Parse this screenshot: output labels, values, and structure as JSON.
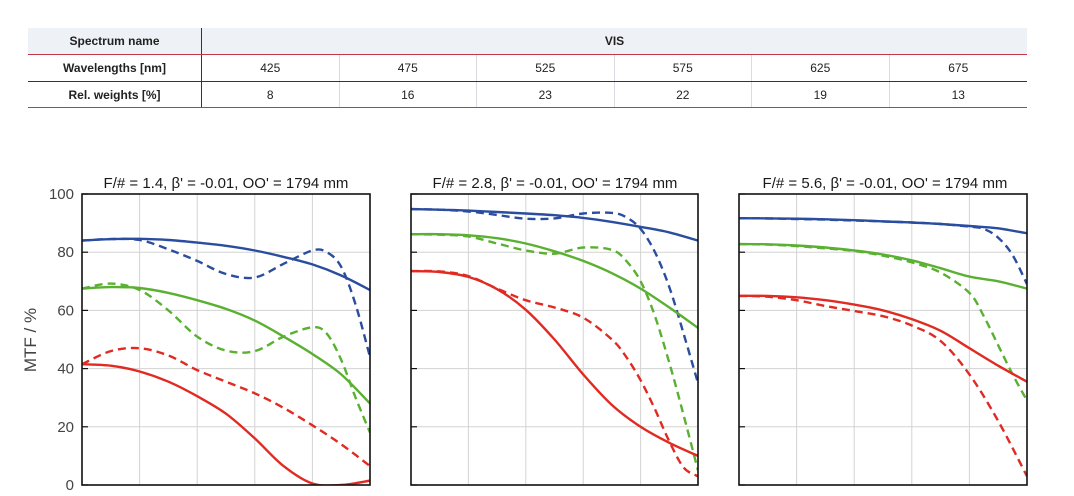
{
  "table": {
    "spectrum_header": "Spectrum name",
    "spectrum_value": "VIS",
    "wavelength_header": "Wavelengths [nm]",
    "wavelengths": [
      "425",
      "475",
      "525",
      "575",
      "625",
      "675"
    ],
    "weights_header": "Rel. weights [%]",
    "weights": [
      "8",
      "16",
      "23",
      "22",
      "19",
      "13"
    ]
  },
  "chart_data": [
    {
      "type": "line",
      "title": "F/# = 1.4, β' = -0.01, OO' = 1794 mm",
      "ylabel": "MTF / %",
      "ylim": [
        0,
        100
      ],
      "yticks": [
        0,
        20,
        40,
        60,
        80,
        100
      ],
      "xlim": [
        0,
        1
      ],
      "grid": true,
      "series": [
        {
          "color": "#2a4d9f",
          "dash": false,
          "x": [
            0,
            0.1,
            0.2,
            0.3,
            0.4,
            0.5,
            0.6,
            0.7,
            0.8,
            0.9,
            1.0
          ],
          "y": [
            84,
            84.5,
            84.6,
            84.2,
            83.3,
            82.2,
            80.6,
            78.4,
            75.8,
            72.0,
            67.0
          ]
        },
        {
          "color": "#2a4d9f",
          "dash": true,
          "x": [
            0,
            0.1,
            0.2,
            0.3,
            0.4,
            0.5,
            0.6,
            0.7,
            0.8,
            0.85,
            0.9,
            0.95,
            1.0
          ],
          "y": [
            84,
            84.5,
            84.2,
            81,
            77,
            72.5,
            71.3,
            76,
            80.6,
            80,
            75,
            62,
            44
          ]
        },
        {
          "color": "#5ab031",
          "dash": false,
          "x": [
            0,
            0.1,
            0.2,
            0.3,
            0.4,
            0.5,
            0.6,
            0.7,
            0.8,
            0.9,
            1.0
          ],
          "y": [
            67.5,
            68,
            67.7,
            66,
            63.5,
            60.5,
            56.5,
            51,
            45,
            38,
            28
          ]
        },
        {
          "color": "#5ab031",
          "dash": true,
          "x": [
            0,
            0.1,
            0.2,
            0.3,
            0.4,
            0.5,
            0.6,
            0.7,
            0.8,
            0.85,
            0.9,
            0.95,
            1.0
          ],
          "y": [
            67.5,
            69.2,
            67,
            60,
            51,
            46.2,
            46,
            51,
            54.2,
            52,
            43,
            30,
            18
          ]
        },
        {
          "color": "#e02a22",
          "dash": false,
          "x": [
            0,
            0.1,
            0.2,
            0.3,
            0.4,
            0.5,
            0.6,
            0.7,
            0.8,
            0.9,
            1.0
          ],
          "y": [
            41.5,
            41,
            39,
            35.5,
            30.5,
            24.5,
            16,
            6.5,
            0.5,
            0,
            1.5
          ]
        },
        {
          "color": "#e02a22",
          "dash": true,
          "x": [
            0,
            0.1,
            0.2,
            0.3,
            0.4,
            0.5,
            0.6,
            0.7,
            0.8,
            0.9,
            1.0
          ],
          "y": [
            41.5,
            46,
            47,
            44.5,
            39.5,
            35.5,
            31.5,
            26.5,
            20.5,
            14,
            6.5
          ]
        }
      ]
    },
    {
      "type": "line",
      "title": "F/# = 2.8, β' = -0.01, OO' = 1794 mm",
      "ylim": [
        0,
        100
      ],
      "yticks": [
        0,
        20,
        40,
        60,
        80,
        100
      ],
      "xlim": [
        0,
        1
      ],
      "grid": true,
      "series": [
        {
          "color": "#2a4d9f",
          "dash": false,
          "x": [
            0,
            0.1,
            0.2,
            0.3,
            0.4,
            0.5,
            0.6,
            0.7,
            0.8,
            0.9,
            1.0
          ],
          "y": [
            94.8,
            94.6,
            94.3,
            93.8,
            93.3,
            92.7,
            91.8,
            90.4,
            88.7,
            86.8,
            84.0
          ]
        },
        {
          "color": "#2a4d9f",
          "dash": true,
          "x": [
            0,
            0.1,
            0.2,
            0.3,
            0.4,
            0.5,
            0.6,
            0.7,
            0.75,
            0.8,
            0.85,
            0.9,
            0.95,
            1.0
          ],
          "y": [
            94.8,
            94.6,
            94,
            92.8,
            91.5,
            91.6,
            93.3,
            93.5,
            92,
            88,
            80,
            68,
            52,
            35
          ]
        },
        {
          "color": "#5ab031",
          "dash": false,
          "x": [
            0,
            0.1,
            0.2,
            0.3,
            0.4,
            0.5,
            0.6,
            0.7,
            0.8,
            0.9,
            1.0
          ],
          "y": [
            86.2,
            86.2,
            85.8,
            84.8,
            83.0,
            80.3,
            77.0,
            72.8,
            67.5,
            61.0,
            54.0
          ]
        },
        {
          "color": "#5ab031",
          "dash": true,
          "x": [
            0,
            0.1,
            0.2,
            0.3,
            0.4,
            0.5,
            0.6,
            0.7,
            0.75,
            0.8,
            0.85,
            0.9,
            0.95,
            1.0
          ],
          "y": [
            86.2,
            86,
            85.4,
            83,
            80.6,
            79.5,
            81.6,
            80.8,
            77,
            70,
            58,
            42,
            24,
            5
          ]
        },
        {
          "color": "#e02a22",
          "dash": false,
          "x": [
            0,
            0.1,
            0.2,
            0.3,
            0.4,
            0.5,
            0.6,
            0.7,
            0.8,
            0.9,
            1.0
          ],
          "y": [
            73.5,
            73.2,
            71.5,
            67.3,
            60.2,
            50,
            38,
            27.5,
            20,
            14.5,
            10
          ]
        },
        {
          "color": "#e02a22",
          "dash": true,
          "x": [
            0,
            0.1,
            0.2,
            0.3,
            0.4,
            0.5,
            0.6,
            0.7,
            0.75,
            0.8,
            0.85,
            0.9,
            0.95,
            1.0
          ],
          "y": [
            73.5,
            73.4,
            71.8,
            67.5,
            63.5,
            61,
            57.5,
            50,
            44,
            36,
            26,
            15,
            6,
            3
          ]
        }
      ]
    },
    {
      "type": "line",
      "title": "F/# = 5.6, β' = -0.01, OO' = 1794 mm",
      "ylim": [
        0,
        100
      ],
      "yticks": [
        0,
        20,
        40,
        60,
        80,
        100
      ],
      "xlim": [
        0,
        1
      ],
      "grid": true,
      "series": [
        {
          "color": "#2a4d9f",
          "dash": false,
          "x": [
            0,
            0.1,
            0.2,
            0.3,
            0.4,
            0.5,
            0.6,
            0.7,
            0.8,
            0.9,
            1.0
          ],
          "y": [
            91.7,
            91.6,
            91.5,
            91.3,
            91.0,
            90.6,
            90.2,
            89.7,
            89.0,
            88.2,
            86.5
          ]
        },
        {
          "color": "#2a4d9f",
          "dash": true,
          "x": [
            0,
            0.1,
            0.2,
            0.3,
            0.4,
            0.5,
            0.6,
            0.7,
            0.8,
            0.85,
            0.9,
            0.95,
            1.0
          ],
          "y": [
            91.7,
            91.6,
            91.4,
            91.2,
            90.9,
            90.6,
            90.2,
            89.7,
            88.8,
            88,
            85,
            79,
            69
          ]
        },
        {
          "color": "#5ab031",
          "dash": false,
          "x": [
            0,
            0.1,
            0.2,
            0.3,
            0.4,
            0.5,
            0.6,
            0.7,
            0.8,
            0.9,
            1.0
          ],
          "y": [
            82.8,
            82.7,
            82.3,
            81.6,
            80.6,
            79.2,
            77.2,
            74.5,
            71.6,
            70.0,
            67.5
          ]
        },
        {
          "color": "#5ab031",
          "dash": true,
          "x": [
            0,
            0.1,
            0.2,
            0.3,
            0.4,
            0.5,
            0.6,
            0.7,
            0.8,
            0.85,
            0.9,
            0.95,
            1.0
          ],
          "y": [
            82.8,
            82.6,
            82.1,
            81.3,
            80.4,
            78.8,
            76.5,
            73,
            66,
            58,
            48,
            38,
            29
          ]
        },
        {
          "color": "#e02a22",
          "dash": false,
          "x": [
            0,
            0.1,
            0.2,
            0.3,
            0.4,
            0.5,
            0.6,
            0.7,
            0.8,
            0.9,
            1.0
          ],
          "y": [
            65,
            65,
            64.5,
            63.5,
            62,
            60,
            57,
            53,
            47,
            41,
            35.5
          ]
        },
        {
          "color": "#e02a22",
          "dash": true,
          "x": [
            0,
            0.1,
            0.2,
            0.3,
            0.4,
            0.5,
            0.6,
            0.7,
            0.8,
            0.9,
            1.0
          ],
          "y": [
            65,
            64.7,
            63.5,
            61.5,
            59.8,
            58,
            54.8,
            49.5,
            38,
            22,
            3
          ]
        }
      ]
    }
  ]
}
